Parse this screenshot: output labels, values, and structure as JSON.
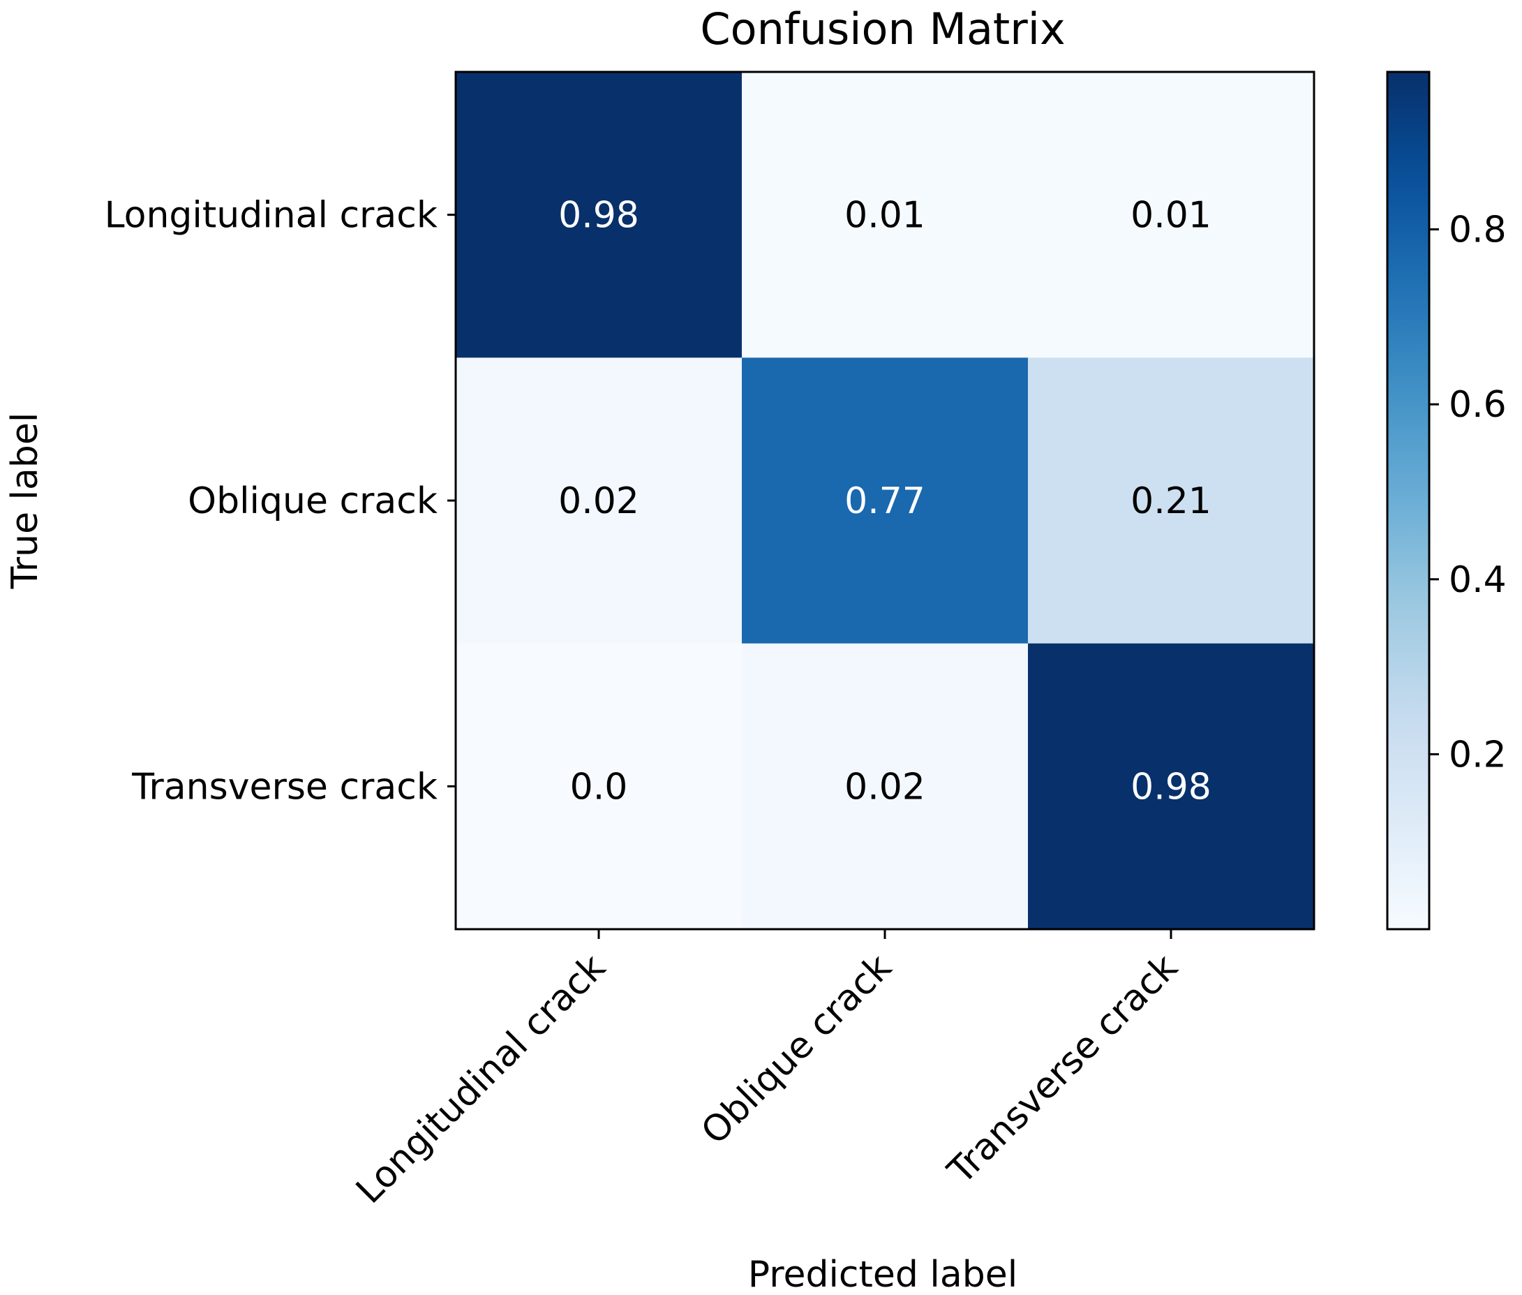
{
  "chart_data": {
    "type": "heatmap",
    "title": "Confusion Matrix",
    "xlabel": "Predicted label",
    "ylabel": "True label",
    "x_categories": [
      "Longitudinal crack",
      "Oblique crack",
      "Transverse crack"
    ],
    "y_categories": [
      "Longitudinal crack",
      "Oblique crack",
      "Transverse crack"
    ],
    "values": [
      [
        0.98,
        0.01,
        0.01
      ],
      [
        0.02,
        0.77,
        0.21
      ],
      [
        0.0,
        0.02,
        0.98
      ]
    ],
    "cell_labels": [
      [
        "0.98",
        "0.01",
        "0.01"
      ],
      [
        "0.02",
        "0.77",
        "0.21"
      ],
      [
        "0.0",
        "0.02",
        "0.98"
      ]
    ],
    "colormap": "Blues",
    "colorbar": {
      "range": [
        0.0,
        0.98
      ],
      "ticks": [
        0.2,
        0.4,
        0.6,
        0.8
      ],
      "tick_labels": [
        "0.2",
        "0.4",
        "0.6",
        "0.8"
      ]
    },
    "grid": false
  }
}
